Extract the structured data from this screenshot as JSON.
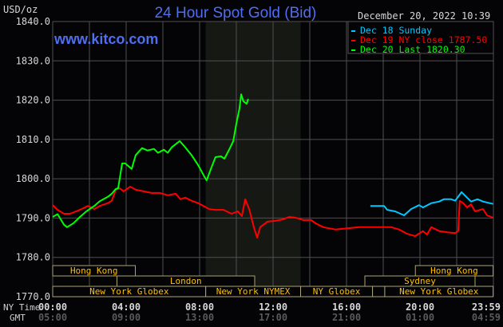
{
  "header": {
    "title": "24 Hour Spot Gold (Bid)",
    "unit": "USD/oz",
    "timestamp": "December 20, 2022 10:39",
    "watermark": "www.kitco.com"
  },
  "colors": {
    "title": "#4f6ff0",
    "dec18": "#00c8ff",
    "dec19": "#ff0000",
    "dec20": "#00ff00",
    "session_label": "#ffc000",
    "grid": "#505050",
    "nymex_shade": "#161814"
  },
  "sessions": [
    {
      "label": "Hong Kong",
      "row": 1,
      "start": "00:00",
      "end": "04:30"
    },
    {
      "label": "London",
      "row": 2,
      "start": "03:30",
      "end": "11:00"
    },
    {
      "label": "New York Globex",
      "row": 3,
      "start": "00:00",
      "end": "08:20"
    },
    {
      "label": "New York NYMEX",
      "row": 3,
      "start": "08:20",
      "end": "13:30"
    },
    {
      "label": "NY Globex",
      "row": 3,
      "start": "13:30",
      "end": "17:25"
    },
    {
      "label": "",
      "row": 3,
      "start": "17:25",
      "end": "18:05"
    },
    {
      "label": "New York Globex",
      "row": 3,
      "start": "18:05",
      "end": "23:59"
    },
    {
      "label": "Sydney",
      "row": 2,
      "start": "17:00",
      "end": "23:00"
    },
    {
      "label": "Hong Kong",
      "row": 1,
      "start": "19:45",
      "end": "23:59"
    }
  ],
  "chart_data": {
    "type": "line",
    "title": "24 Hour Spot Gold (Bid)",
    "ylabel": "USD/oz",
    "ylim": [
      1770,
      1840
    ],
    "yticks": [
      "1840.0",
      "1830.0",
      "1820.0",
      "1810.0",
      "1800.0",
      "1790.0",
      "1780.0",
      "1770.0"
    ],
    "xlim": [
      "00:00",
      "23:59"
    ],
    "x_axis_rows": [
      {
        "label": "NY Time",
        "ticks": [
          "00:00",
          "04:00",
          "08:00",
          "12:00",
          "16:00",
          "20:00",
          "23:59"
        ]
      },
      {
        "label": "GMT",
        "ticks": [
          "05:00",
          "09:00",
          "13:00",
          "17:00",
          "21:00",
          "01:00",
          "04:59"
        ]
      }
    ],
    "shaded_range": [
      "08:20",
      "13:30"
    ],
    "grid": true,
    "legend_position": "top-right",
    "series": [
      {
        "name": "Dec 18 Sunday",
        "color": "#00c8ff",
        "points": [
          [
            "17:18",
            1793.1
          ],
          [
            "18:03",
            1793.1
          ],
          [
            "18:13",
            1792.1
          ],
          [
            "18:39",
            1791.7
          ],
          [
            "19:08",
            1790.7
          ],
          [
            "19:31",
            1792.3
          ],
          [
            "19:57",
            1793.3
          ],
          [
            "20:10",
            1792.7
          ],
          [
            "20:37",
            1793.8
          ],
          [
            "21:03",
            1794.2
          ],
          [
            "21:18",
            1794.8
          ],
          [
            "21:42",
            1794.8
          ],
          [
            "21:55",
            1794.4
          ],
          [
            "22:16",
            1796.6
          ],
          [
            "22:34",
            1795.2
          ],
          [
            "22:47",
            1794.2
          ],
          [
            "23:08",
            1794.8
          ],
          [
            "23:26",
            1794.2
          ],
          [
            "23:59",
            1793.6
          ]
        ]
      },
      {
        "name": "Dec 19 NY close 1787.50",
        "color": "#ff0000",
        "points": [
          [
            "00:00",
            1793.3
          ],
          [
            "00:16",
            1792.1
          ],
          [
            "00:37",
            1791.1
          ],
          [
            "00:57",
            1791.1
          ],
          [
            "01:29",
            1792.1
          ],
          [
            "01:55",
            1793.1
          ],
          [
            "02:16",
            1792.3
          ],
          [
            "02:34",
            1793.1
          ],
          [
            "03:00",
            1793.8
          ],
          [
            "03:13",
            1794.4
          ],
          [
            "03:26",
            1797.2
          ],
          [
            "03:39",
            1797.6
          ],
          [
            "03:52",
            1796.8
          ],
          [
            "04:13",
            1798.0
          ],
          [
            "04:31",
            1797.2
          ],
          [
            "04:57",
            1796.8
          ],
          [
            "05:23",
            1796.4
          ],
          [
            "05:50",
            1796.4
          ],
          [
            "06:16",
            1795.8
          ],
          [
            "06:42",
            1796.2
          ],
          [
            "06:57",
            1794.8
          ],
          [
            "07:13",
            1795.2
          ],
          [
            "07:34",
            1794.4
          ],
          [
            "07:55",
            1793.8
          ],
          [
            "08:13",
            1793.1
          ],
          [
            "08:31",
            1792.3
          ],
          [
            "08:52",
            1792.1
          ],
          [
            "09:18",
            1792.1
          ],
          [
            "09:44",
            1791.1
          ],
          [
            "10:05",
            1791.7
          ],
          [
            "10:18",
            1790.5
          ],
          [
            "10:29",
            1794.8
          ],
          [
            "10:42",
            1792.3
          ],
          [
            "10:57",
            1787.7
          ],
          [
            "11:08",
            1785.0
          ],
          [
            "11:18",
            1787.7
          ],
          [
            "11:42",
            1789.1
          ],
          [
            "12:08",
            1789.3
          ],
          [
            "12:34",
            1789.7
          ],
          [
            "12:52",
            1790.3
          ],
          [
            "13:13",
            1790.1
          ],
          [
            "13:39",
            1789.5
          ],
          [
            "14:05",
            1789.5
          ],
          [
            "14:18",
            1788.7
          ],
          [
            "14:44",
            1787.7
          ],
          [
            "15:23",
            1787.1
          ],
          [
            "15:50",
            1787.3
          ],
          [
            "16:42",
            1787.7
          ],
          [
            "18:00",
            1787.7
          ],
          [
            "18:26",
            1787.7
          ],
          [
            "18:52",
            1787.1
          ],
          [
            "19:18",
            1786.0
          ],
          [
            "19:44",
            1785.4
          ],
          [
            "20:10",
            1786.7
          ],
          [
            "20:23",
            1785.8
          ],
          [
            "20:37",
            1787.7
          ],
          [
            "21:03",
            1786.7
          ],
          [
            "21:29",
            1786.4
          ],
          [
            "21:55",
            1786.2
          ],
          [
            "22:05",
            1786.7
          ],
          [
            "22:10",
            1794.4
          ],
          [
            "22:21",
            1793.8
          ],
          [
            "22:34",
            1792.7
          ],
          [
            "22:47",
            1793.5
          ],
          [
            "23:00",
            1791.7
          ],
          [
            "23:26",
            1792.3
          ],
          [
            "23:39",
            1790.7
          ],
          [
            "23:59",
            1790.1
          ]
        ]
      },
      {
        "name": "Dec 20 Last 1820.30",
        "color": "#00ff00",
        "points": [
          [
            "00:00",
            1790.3
          ],
          [
            "00:16",
            1791.0
          ],
          [
            "00:37",
            1788.3
          ],
          [
            "00:47",
            1787.7
          ],
          [
            "01:08",
            1788.7
          ],
          [
            "01:29",
            1790.3
          ],
          [
            "01:50",
            1791.7
          ],
          [
            "02:16",
            1793.1
          ],
          [
            "02:34",
            1794.3
          ],
          [
            "03:00",
            1795.4
          ],
          [
            "03:13",
            1796.2
          ],
          [
            "03:26",
            1797.4
          ],
          [
            "03:34",
            1797.6
          ],
          [
            "03:47",
            1803.9
          ],
          [
            "03:57",
            1803.9
          ],
          [
            "04:18",
            1802.5
          ],
          [
            "04:31",
            1806.0
          ],
          [
            "04:52",
            1807.8
          ],
          [
            "05:10",
            1807.2
          ],
          [
            "05:31",
            1807.6
          ],
          [
            "05:44",
            1806.6
          ],
          [
            "06:03",
            1807.4
          ],
          [
            "06:16",
            1806.6
          ],
          [
            "06:29",
            1808.0
          ],
          [
            "06:55",
            1809.6
          ],
          [
            "07:13",
            1808.0
          ],
          [
            "07:34",
            1806.0
          ],
          [
            "07:55",
            1803.5
          ],
          [
            "08:13",
            1800.9
          ],
          [
            "08:23",
            1799.6
          ],
          [
            "08:39",
            1802.9
          ],
          [
            "08:52",
            1805.5
          ],
          [
            "09:10",
            1805.7
          ],
          [
            "09:21",
            1805.1
          ],
          [
            "09:39",
            1807.8
          ],
          [
            "09:50",
            1809.6
          ],
          [
            "10:00",
            1814.0
          ],
          [
            "10:10",
            1817.7
          ],
          [
            "10:16",
            1821.5
          ],
          [
            "10:23",
            1819.7
          ],
          [
            "10:34",
            1819.1
          ],
          [
            "10:39",
            1820.3
          ]
        ]
      }
    ]
  }
}
